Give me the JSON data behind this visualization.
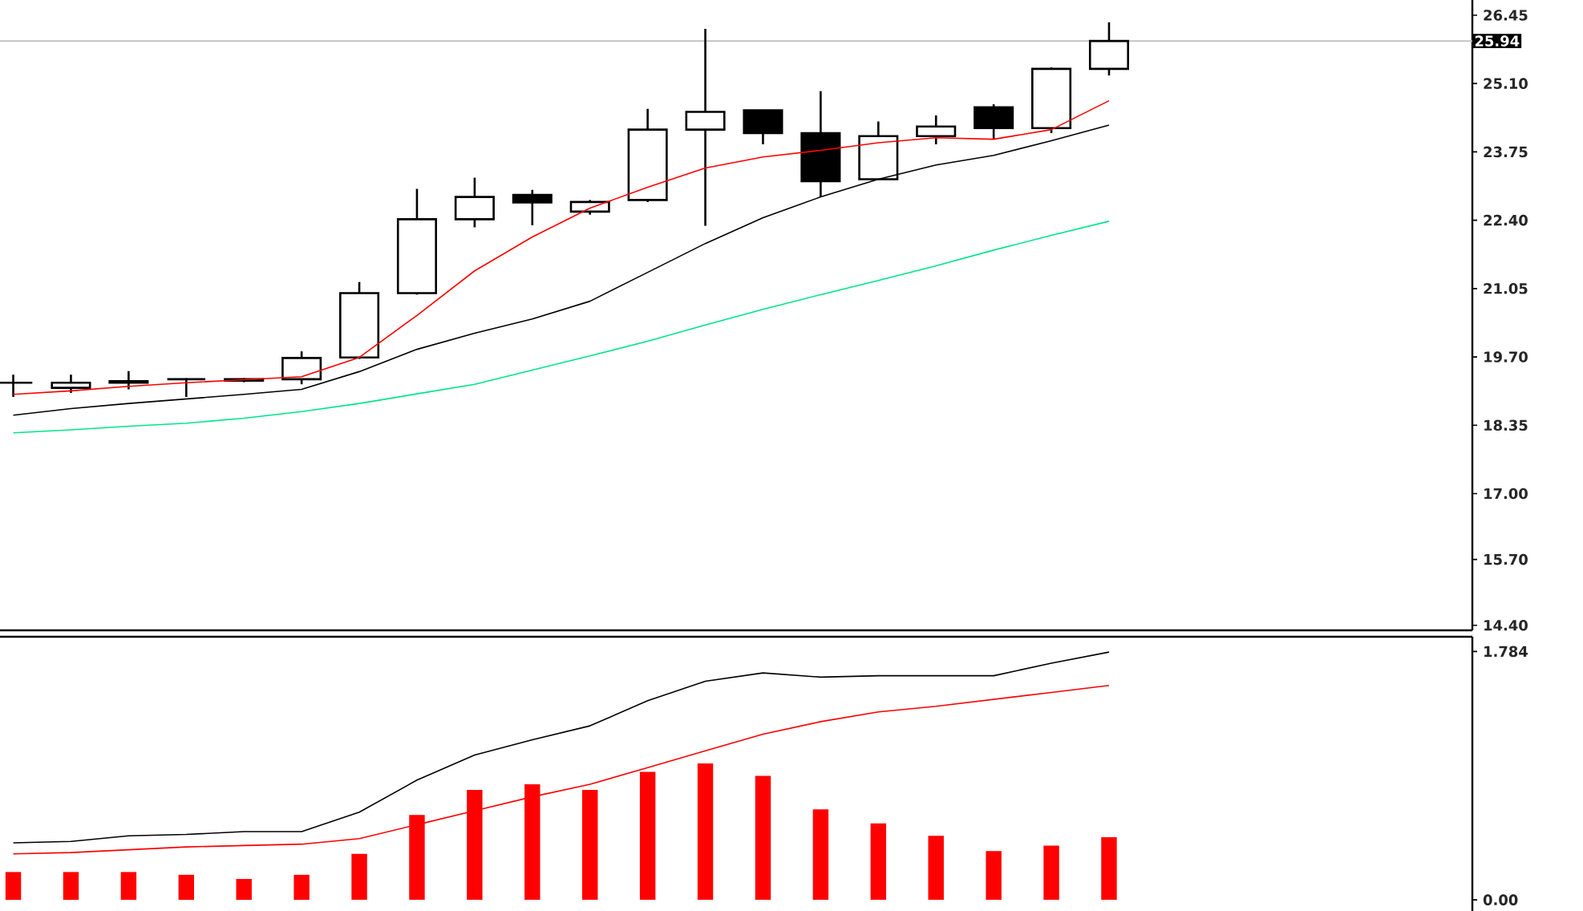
{
  "chart_data": [
    {
      "type": "candlestick",
      "categories": [
        null,
        null,
        null,
        null,
        null,
        null,
        null,
        null,
        null,
        null,
        null,
        null,
        null,
        null,
        null,
        null,
        null,
        null,
        null,
        null
      ],
      "ohlc": [
        [
          19.19,
          19.35,
          18.91,
          19.19
        ],
        [
          19.09,
          19.35,
          18.99,
          19.19
        ],
        [
          19.19,
          19.42,
          19.06,
          19.22
        ],
        [
          19.26,
          19.28,
          18.91,
          19.26
        ],
        [
          19.26,
          19.28,
          19.2,
          19.23
        ],
        [
          19.26,
          19.81,
          19.16,
          19.68
        ],
        [
          19.69,
          21.18,
          19.66,
          20.96
        ],
        [
          20.96,
          23.02,
          20.93,
          22.42
        ],
        [
          22.42,
          23.24,
          22.26,
          22.86
        ],
        [
          22.9,
          23.0,
          22.3,
          22.75
        ],
        [
          22.57,
          22.8,
          22.51,
          22.76
        ],
        [
          22.8,
          24.6,
          22.76,
          24.19
        ],
        [
          24.19,
          26.18,
          22.29,
          24.54
        ],
        [
          24.57,
          24.57,
          23.9,
          24.12
        ],
        [
          24.12,
          24.95,
          22.86,
          23.17
        ],
        [
          23.21,
          24.35,
          23.21,
          24.06
        ],
        [
          24.06,
          24.47,
          23.9,
          24.25
        ],
        [
          24.63,
          24.69,
          24.0,
          24.22
        ],
        [
          24.22,
          25.42,
          24.12,
          25.39
        ],
        [
          25.39,
          26.31,
          25.26,
          25.94
        ]
      ],
      "series": [
        {
          "type": "line",
          "color": "#00e68a",
          "values": [
            18.2,
            18.26,
            18.33,
            18.39,
            18.49,
            18.62,
            18.78,
            18.97,
            19.16,
            19.44,
            19.72,
            20.01,
            20.33,
            20.64,
            20.93,
            21.21,
            21.5,
            21.81,
            22.1,
            22.38
          ]
        },
        {
          "type": "line",
          "color": "#000000",
          "values": [
            18.55,
            18.68,
            18.78,
            18.87,
            18.96,
            19.06,
            19.41,
            19.85,
            20.17,
            20.45,
            20.8,
            21.37,
            21.94,
            22.45,
            22.86,
            23.21,
            23.49,
            23.68,
            23.97,
            24.28
          ]
        },
        {
          "type": "line",
          "color": "#ff0000",
          "values": [
            18.96,
            19.03,
            19.12,
            19.19,
            19.25,
            19.31,
            19.69,
            20.52,
            21.4,
            22.07,
            22.64,
            23.05,
            23.43,
            23.65,
            23.78,
            23.93,
            24.03,
            24.0,
            24.19,
            24.76
          ]
        }
      ],
      "ylim": [
        14.3,
        26.75
      ],
      "yticks": [
        26.45,
        {
          "value": 25.1,
          "label": "25.10"
        },
        23.75,
        {
          "value": 22.4,
          "label": "22.40"
        },
        21.05,
        {
          "value": 19.7,
          "label": "19.70"
        },
        18.35,
        {
          "value": 17.0,
          "label": "17.00"
        },
        {
          "value": 15.7,
          "label": "15.70"
        },
        {
          "value": 14.4,
          "label": "14.40"
        }
      ],
      "ref_lines": [
        {
          "axis": "y",
          "value": 25.94,
          "label": "25.94",
          "color": "#c0c0c0"
        }
      ],
      "tick_labels": "y"
    },
    {
      "type": "bar",
      "categories": [
        null,
        null,
        null,
        null,
        null,
        null,
        null,
        null,
        null,
        null,
        null,
        null,
        null,
        null,
        null,
        null,
        null,
        null,
        null,
        null
      ],
      "series": [
        {
          "type": "bar",
          "color": "#ff0000",
          "values": [
            0.2,
            0.2,
            0.2,
            0.18,
            0.15,
            0.18,
            0.33,
            0.61,
            0.79,
            0.83,
            0.79,
            0.92,
            0.98,
            0.89,
            0.65,
            0.55,
            0.46,
            0.35,
            0.39,
            0.45
          ]
        },
        {
          "type": "line",
          "color": "#000000",
          "values": [
            0.41,
            0.42,
            0.46,
            0.47,
            0.49,
            0.49,
            0.63,
            0.86,
            1.04,
            1.15,
            1.25,
            1.43,
            1.57,
            1.63,
            1.6,
            1.61,
            1.61,
            1.61,
            1.7,
            1.78
          ]
        },
        {
          "type": "line",
          "color": "#ff0000",
          "values": [
            0.33,
            0.34,
            0.36,
            0.38,
            0.39,
            0.4,
            0.44,
            0.54,
            0.64,
            0.74,
            0.83,
            0.95,
            1.07,
            1.19,
            1.28,
            1.35,
            1.39,
            1.44,
            1.49,
            1.54
          ]
        }
      ],
      "ylim": [
        -0.08,
        1.89
      ],
      "yticks": [
        1.784,
        {
          "value": 0,
          "label": "0.00"
        }
      ],
      "tick_labels": "y"
    }
  ]
}
